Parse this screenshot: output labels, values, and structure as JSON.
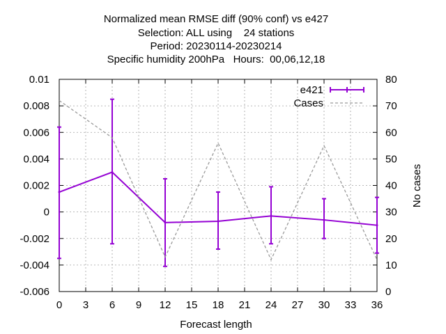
{
  "chart_data": {
    "type": "line",
    "title_lines": [
      "Normalized mean RMSE diff (90% conf) vs e427",
      "Selection: ALL using    24 stations",
      "Period: 20230114-20230214",
      "Specific humidity 200hPa   Hours:  00,06,12,18"
    ],
    "xlabel": "Forecast length",
    "ylabel": "",
    "y2label": "No cases",
    "xlim": [
      0,
      36
    ],
    "ylim": [
      -0.006,
      0.01
    ],
    "y2lim": [
      0,
      80
    ],
    "x_ticks": [
      0,
      3,
      6,
      9,
      12,
      15,
      18,
      21,
      24,
      27,
      30,
      33,
      36
    ],
    "y_ticks": [
      -0.006,
      -0.004,
      -0.002,
      0,
      0.002,
      0.004,
      0.006,
      0.008,
      0.01
    ],
    "y_tick_labels": [
      "-0.006",
      "-0.004",
      "-0.002",
      "0",
      "0.002",
      "0.004",
      "0.006",
      "0.008",
      "0.01"
    ],
    "y2_ticks": [
      0,
      10,
      20,
      30,
      40,
      50,
      60,
      70,
      80
    ],
    "grid": true,
    "legend_position": "top-right",
    "series": [
      {
        "name": "e421",
        "axis": "y",
        "style": "line-errorbars",
        "color": "#9400d3",
        "x": [
          0,
          6,
          12,
          18,
          24,
          30,
          36
        ],
        "y": [
          0.0015,
          0.003,
          -0.0008,
          -0.0007,
          -0.0003,
          -0.0006,
          -0.001
        ],
        "y_low": [
          -0.0035,
          -0.0024,
          -0.0041,
          -0.0028,
          -0.0024,
          -0.002,
          -0.0031
        ],
        "y_high": [
          0.0064,
          0.0085,
          0.0025,
          0.0015,
          0.0019,
          0.001,
          0.0011
        ]
      },
      {
        "name": "Cases",
        "axis": "y2",
        "style": "dashed",
        "color": "#999999",
        "x": [
          0,
          6,
          12,
          18,
          24,
          30,
          36
        ],
        "y": [
          72,
          58,
          13,
          56,
          12,
          55,
          12
        ]
      }
    ]
  }
}
